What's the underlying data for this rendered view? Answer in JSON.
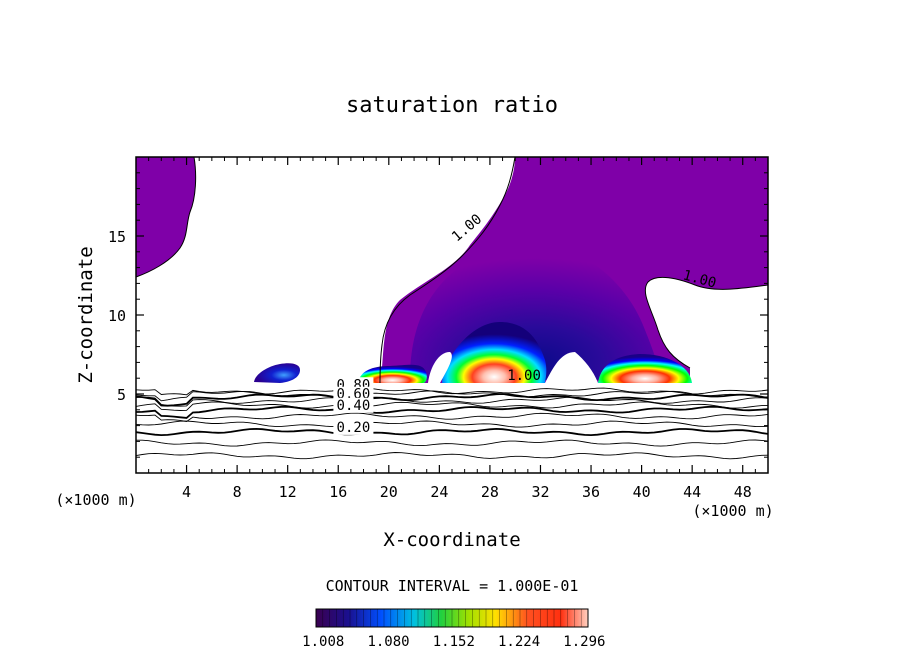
{
  "chart_data": {
    "type": "contour",
    "title": "saturation ratio",
    "xlabel": "X-coordinate",
    "ylabel": "Z-coordinate",
    "x_unit_left": "(×1000 m)",
    "x_unit_right": "(×1000 m)",
    "xlim": [
      0,
      50
    ],
    "ylim": [
      0,
      20
    ],
    "x_ticks": [
      4,
      8,
      12,
      16,
      20,
      24,
      28,
      32,
      36,
      40,
      44,
      48
    ],
    "y_ticks": [
      5,
      10,
      15
    ],
    "contour_interval_text": "CONTOUR INTERVAL = 1.000E-01",
    "contour_line_labels": [
      {
        "text": "1.00",
        "x": 26.4,
        "y": 15.3
      },
      {
        "text": "1.00",
        "x": 44.5,
        "y": 12.0
      },
      {
        "text": "1.00",
        "x": 30.7,
        "y": 5.9
      },
      {
        "text": "0.80",
        "x": 17.2,
        "y": 5.3
      },
      {
        "text": "0.60",
        "x": 17.2,
        "y": 4.7
      },
      {
        "text": "0.40",
        "x": 17.2,
        "y": 4.0
      },
      {
        "text": "0.20",
        "x": 17.2,
        "y": 2.6
      }
    ],
    "colorbar": {
      "range": [
        1.0,
        1.3
      ],
      "tick_labels": [
        "1.008",
        "1.080",
        "1.152",
        "1.224",
        "1.296"
      ]
    },
    "colors": {
      "supersaturated_fill": "#7f00a8",
      "background": "#ffffff"
    }
  }
}
